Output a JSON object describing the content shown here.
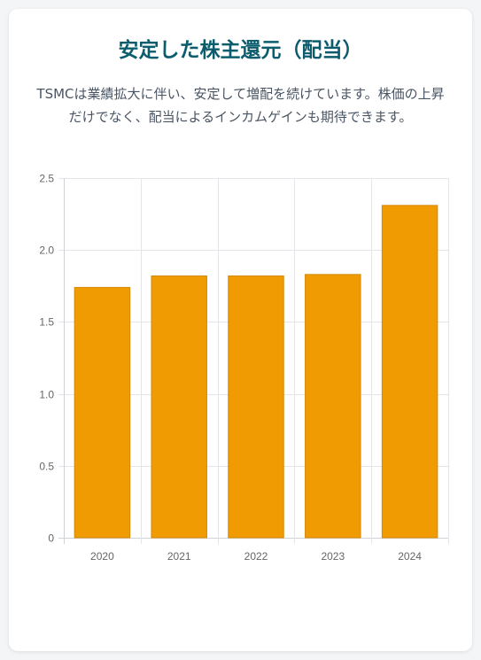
{
  "title": "安定した株主還元（配当）",
  "description": "TSMCは業績拡大に伴い、安定して増配を続けています。株価の上昇だけでなく、配当によるインカムゲインも期待できます。",
  "colors": {
    "title": "#0b5d6e",
    "text": "#4a5563",
    "bar": "#f09b02",
    "bar_border": "#d28a0a",
    "grid": "#e3e5e8",
    "axis_text": "#666666"
  },
  "chart_data": {
    "type": "bar",
    "title": "",
    "xlabel": "",
    "ylabel": "",
    "categories": [
      "2020",
      "2021",
      "2022",
      "2023",
      "2024"
    ],
    "values": [
      1.74,
      1.82,
      1.82,
      1.83,
      2.31
    ],
    "ylim": [
      0,
      2.5
    ],
    "yticks": [
      "0",
      "0.5",
      "1.0",
      "1.5",
      "2.0",
      "2.5"
    ],
    "grid": true,
    "legend": false
  }
}
